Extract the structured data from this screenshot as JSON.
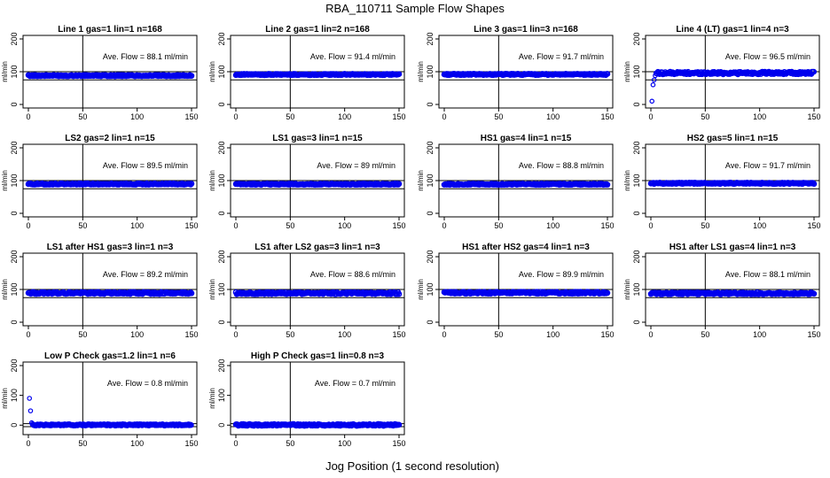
{
  "figure": {
    "title": "RBA_110711  Sample Flow Shapes",
    "xlabel": "Jog Position (1 second resolution)",
    "point_color": "#0000ee"
  },
  "chart_data": [
    {
      "type": "scatter",
      "title": "Line 1 gas=1 lin=1 n=168",
      "ylabel": "ml/min",
      "xlim": [
        0,
        150
      ],
      "ylim": [
        0,
        200
      ],
      "xticks": [
        0,
        50,
        100,
        150
      ],
      "yticks": [
        0,
        100,
        200
      ],
      "vline": 50,
      "hlines": [
        75,
        100
      ],
      "annotation": "Ave. Flow =  88.1  ml/min",
      "series": [
        {
          "name": "flow",
          "x": [
            0,
            150
          ],
          "y": [
            88.1,
            88.1
          ],
          "spread": 2
        }
      ]
    },
    {
      "type": "scatter",
      "title": "Line 2 gas=1 lin=2 n=168",
      "ylabel": "ml/min",
      "xlim": [
        0,
        150
      ],
      "ylim": [
        0,
        200
      ],
      "xticks": [
        0,
        50,
        100,
        150
      ],
      "yticks": [
        0,
        100,
        200
      ],
      "vline": 50,
      "hlines": [
        75,
        100
      ],
      "annotation": "Ave. Flow =  91.4  ml/min",
      "series": [
        {
          "name": "flow",
          "x": [
            0,
            150
          ],
          "y": [
            91.4,
            91.4
          ],
          "spread": 2
        }
      ]
    },
    {
      "type": "scatter",
      "title": "Line 3 gas=1 lin=3 n=168",
      "ylabel": "ml/min",
      "xlim": [
        0,
        150
      ],
      "ylim": [
        0,
        200
      ],
      "xticks": [
        0,
        50,
        100,
        150
      ],
      "yticks": [
        0,
        100,
        200
      ],
      "vline": 50,
      "hlines": [
        75,
        100
      ],
      "annotation": "Ave. Flow =  91.7  ml/min",
      "series": [
        {
          "name": "flow",
          "x": [
            0,
            150
          ],
          "y": [
            91.7,
            91.7
          ],
          "spread": 2
        }
      ]
    },
    {
      "type": "scatter",
      "title": "Line 4 (LT) gas=1 lin=4 n=3",
      "ylabel": "ml/min",
      "xlim": [
        0,
        150
      ],
      "ylim": [
        0,
        200
      ],
      "xticks": [
        0,
        50,
        100,
        150
      ],
      "yticks": [
        0,
        100,
        200
      ],
      "vline": 50,
      "hlines": [
        75,
        100
      ],
      "annotation": "Ave. Flow =  96.5  ml/min",
      "series": [
        {
          "name": "flow",
          "x": [
            1,
            2,
            3,
            4,
            5,
            150
          ],
          "y": [
            10,
            60,
            75,
            88,
            96,
            96
          ],
          "spread": 4
        }
      ]
    },
    {
      "type": "scatter",
      "title": "LS2 gas=2 lin=1 n=15",
      "ylabel": "ml/min",
      "xlim": [
        0,
        150
      ],
      "ylim": [
        0,
        200
      ],
      "xticks": [
        0,
        50,
        100,
        150
      ],
      "yticks": [
        0,
        100,
        200
      ],
      "vline": 50,
      "hlines": [
        75,
        100
      ],
      "annotation": "Ave. Flow =  89.5  ml/min",
      "series": [
        {
          "name": "flow",
          "x": [
            0,
            150
          ],
          "y": [
            89.5,
            89.5
          ],
          "spread": 2
        }
      ]
    },
    {
      "type": "scatter",
      "title": "LS1 gas=3 lin=1 n=15",
      "ylabel": "ml/min",
      "xlim": [
        0,
        150
      ],
      "ylim": [
        0,
        200
      ],
      "xticks": [
        0,
        50,
        100,
        150
      ],
      "yticks": [
        0,
        100,
        200
      ],
      "vline": 50,
      "hlines": [
        75,
        100
      ],
      "annotation": "Ave. Flow =  89  ml/min",
      "series": [
        {
          "name": "flow",
          "x": [
            0,
            150
          ],
          "y": [
            89,
            89
          ],
          "spread": 2
        }
      ]
    },
    {
      "type": "scatter",
      "title": "HS1 gas=4 lin=1 n=15",
      "ylabel": "ml/min",
      "xlim": [
        0,
        150
      ],
      "ylim": [
        0,
        200
      ],
      "xticks": [
        0,
        50,
        100,
        150
      ],
      "yticks": [
        0,
        100,
        200
      ],
      "vline": 50,
      "hlines": [
        75,
        100
      ],
      "annotation": "Ave. Flow =  88.8  ml/min",
      "series": [
        {
          "name": "flow",
          "x": [
            0,
            150
          ],
          "y": [
            88.8,
            88.8
          ],
          "spread": 2
        }
      ]
    },
    {
      "type": "scatter",
      "title": "HS2 gas=5 lin=1 n=15",
      "ylabel": "ml/min",
      "xlim": [
        0,
        150
      ],
      "ylim": [
        0,
        200
      ],
      "xticks": [
        0,
        50,
        100,
        150
      ],
      "yticks": [
        0,
        100,
        200
      ],
      "vline": 50,
      "hlines": [
        75,
        100
      ],
      "annotation": "Ave. Flow =  91.7  ml/min",
      "series": [
        {
          "name": "flow",
          "x": [
            0,
            150
          ],
          "y": [
            91.7,
            91.7
          ],
          "spread": 2
        }
      ]
    },
    {
      "type": "scatter",
      "title": "LS1 after HS1 gas=3 lin=1 n=3",
      "ylabel": "ml/min",
      "xlim": [
        0,
        150
      ],
      "ylim": [
        0,
        200
      ],
      "xticks": [
        0,
        50,
        100,
        150
      ],
      "yticks": [
        0,
        100,
        200
      ],
      "vline": 50,
      "hlines": [
        75,
        100
      ],
      "annotation": "Ave. Flow =  89.2  ml/min",
      "series": [
        {
          "name": "flow",
          "x": [
            0,
            150
          ],
          "y": [
            89.2,
            89.2
          ],
          "spread": 3
        }
      ]
    },
    {
      "type": "scatter",
      "title": "LS1 after LS2 gas=3 lin=1 n=3",
      "ylabel": "ml/min",
      "xlim": [
        0,
        150
      ],
      "ylim": [
        0,
        200
      ],
      "xticks": [
        0,
        50,
        100,
        150
      ],
      "yticks": [
        0,
        100,
        200
      ],
      "vline": 50,
      "hlines": [
        75,
        100
      ],
      "annotation": "Ave. Flow =  88.6  ml/min",
      "series": [
        {
          "name": "flow",
          "x": [
            0,
            150
          ],
          "y": [
            88.6,
            88.6
          ],
          "spread": 3
        }
      ]
    },
    {
      "type": "scatter",
      "title": "HS1 after HS2 gas=4 lin=1 n=3",
      "ylabel": "ml/min",
      "xlim": [
        0,
        150
      ],
      "ylim": [
        0,
        200
      ],
      "xticks": [
        0,
        50,
        100,
        150
      ],
      "yticks": [
        0,
        100,
        200
      ],
      "vline": 50,
      "hlines": [
        75,
        100
      ],
      "annotation": "Ave. Flow =  89.9  ml/min",
      "series": [
        {
          "name": "flow",
          "x": [
            0,
            150
          ],
          "y": [
            89.9,
            89.9
          ],
          "spread": 3
        }
      ]
    },
    {
      "type": "scatter",
      "title": "HS1 after LS1 gas=4 lin=1 n=3",
      "ylabel": "ml/min",
      "xlim": [
        0,
        150
      ],
      "ylim": [
        0,
        200
      ],
      "xticks": [
        0,
        50,
        100,
        150
      ],
      "yticks": [
        0,
        100,
        200
      ],
      "vline": 50,
      "hlines": [
        75,
        100
      ],
      "annotation": "Ave. Flow =  88.1  ml/min",
      "series": [
        {
          "name": "flow",
          "x": [
            0,
            150
          ],
          "y": [
            88.1,
            88.1
          ],
          "spread": 3
        }
      ]
    },
    {
      "type": "scatter",
      "title": "Low P Check gas=1.2 lin=1 n=6",
      "ylabel": "ml/min",
      "xlim": [
        0,
        150
      ],
      "ylim": [
        -20,
        200
      ],
      "xticks": [
        0,
        50,
        100,
        150
      ],
      "yticks": [
        0,
        100,
        200
      ],
      "vline": 50,
      "hlines": [
        -5,
        5
      ],
      "annotation": "Ave. Flow =  0.8  ml/min",
      "series": [
        {
          "name": "flow",
          "x": [
            1,
            2,
            3,
            4,
            150
          ],
          "y": [
            90,
            48,
            8,
            2,
            0.8
          ],
          "spread": 2
        }
      ]
    },
    {
      "type": "scatter",
      "title": "High P Check gas=1 lin=0.8 n=3",
      "ylabel": "ml/min",
      "xlim": [
        0,
        150
      ],
      "ylim": [
        -20,
        200
      ],
      "xticks": [
        0,
        50,
        100,
        150
      ],
      "yticks": [
        0,
        100,
        200
      ],
      "vline": 50,
      "hlines": [
        -5,
        5
      ],
      "annotation": "Ave. Flow =  0.7  ml/min",
      "series": [
        {
          "name": "flow",
          "x": [
            0,
            150
          ],
          "y": [
            0.7,
            0.7
          ],
          "spread": 3
        }
      ]
    }
  ]
}
